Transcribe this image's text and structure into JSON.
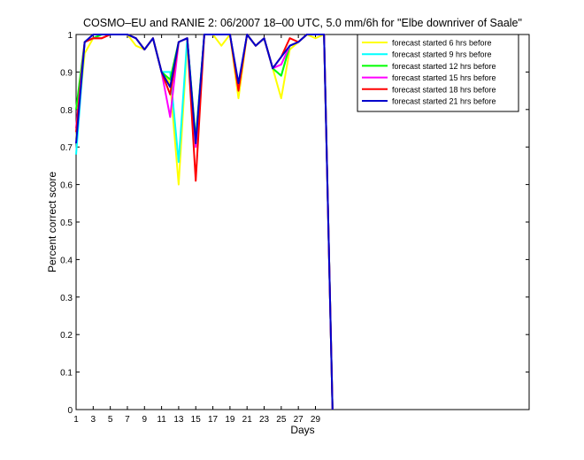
{
  "chart_data": {
    "type": "line",
    "title": "COSMO–EU and RANIE 2: 06/2007 18–00 UTC, 5.0 mm/6h for \"Elbe downriver of Saale\"",
    "xlabel": "Days",
    "ylabel": "Percent correct score",
    "xlim": [
      1,
      54
    ],
    "ylim": [
      0,
      1
    ],
    "x_ticks": [
      "1",
      "3",
      "5",
      "7",
      "9",
      "11",
      "13",
      "15",
      "17",
      "19",
      "21",
      "23",
      "25",
      "27",
      "29"
    ],
    "y_ticks": [
      "0",
      "0.1",
      "0.2",
      "0.3",
      "0.4",
      "0.5",
      "0.6",
      "0.7",
      "0.8",
      "0.9",
      "1"
    ],
    "grid": false,
    "legend_position": "top-right",
    "x": [
      1,
      2,
      3,
      4,
      5,
      6,
      7,
      8,
      9,
      10,
      11,
      12,
      13,
      14,
      15,
      16,
      17,
      18,
      19,
      20,
      21,
      22,
      23,
      24,
      25,
      26,
      27,
      28,
      29,
      30,
      31
    ],
    "series": [
      {
        "name": "forecast started 6 hrs before",
        "color": "#ffff00",
        "values": [
          0.72,
          0.95,
          0.99,
          0.99,
          1.0,
          1.0,
          1.0,
          0.97,
          0.96,
          0.99,
          0.9,
          0.87,
          0.6,
          0.98,
          0.7,
          1.0,
          1.0,
          0.97,
          1.0,
          0.83,
          1.0,
          0.97,
          0.99,
          0.91,
          0.83,
          0.96,
          0.98,
          1.0,
          0.99,
          1.0,
          0.0
        ]
      },
      {
        "name": "forecast started 9 hrs before",
        "color": "#00ffff",
        "values": [
          0.68,
          0.98,
          0.99,
          1.0,
          1.0,
          1.0,
          1.0,
          0.99,
          0.96,
          0.99,
          0.9,
          0.9,
          0.66,
          0.99,
          0.72,
          1.0,
          1.0,
          1.0,
          1.0,
          0.86,
          1.0,
          0.97,
          0.99,
          0.91,
          0.89,
          0.97,
          0.98,
          1.0,
          1.0,
          1.0,
          0.0
        ]
      },
      {
        "name": "forecast started 12 hrs before",
        "color": "#00ff00",
        "values": [
          0.8,
          0.98,
          0.99,
          1.0,
          1.0,
          1.0,
          1.0,
          0.99,
          0.96,
          0.99,
          0.9,
          0.88,
          0.98,
          0.99,
          0.72,
          1.0,
          1.0,
          1.0,
          1.0,
          0.86,
          1.0,
          0.97,
          0.99,
          0.91,
          0.89,
          0.97,
          0.98,
          1.0,
          1.0,
          1.0,
          0.0
        ]
      },
      {
        "name": "forecast started 15 hrs before",
        "color": "#ff00ff",
        "values": [
          0.75,
          0.98,
          0.99,
          0.99,
          1.0,
          1.0,
          1.0,
          0.99,
          0.96,
          0.99,
          0.9,
          0.78,
          0.98,
          0.99,
          0.7,
          1.0,
          1.0,
          1.0,
          1.0,
          0.86,
          1.0,
          0.97,
          0.99,
          0.91,
          0.92,
          0.97,
          0.98,
          1.0,
          1.0,
          1.0,
          0.0
        ]
      },
      {
        "name": "forecast started 18 hrs before",
        "color": "#ff0000",
        "values": [
          0.74,
          0.98,
          0.99,
          0.99,
          1.0,
          1.0,
          1.0,
          0.99,
          0.96,
          0.99,
          0.9,
          0.84,
          0.98,
          0.99,
          0.61,
          1.0,
          1.0,
          1.0,
          1.0,
          0.85,
          1.0,
          0.97,
          0.99,
          0.91,
          0.94,
          0.99,
          0.98,
          1.0,
          1.0,
          1.0,
          0.0
        ]
      },
      {
        "name": "forecast started 21 hrs before",
        "color": "#0000cc",
        "values": [
          0.71,
          0.98,
          1.0,
          1.0,
          1.0,
          1.0,
          1.0,
          0.99,
          0.96,
          0.99,
          0.9,
          0.86,
          0.98,
          0.99,
          0.71,
          1.0,
          1.0,
          1.0,
          1.0,
          0.87,
          1.0,
          0.97,
          0.99,
          0.91,
          0.94,
          0.97,
          0.98,
          1.0,
          1.0,
          1.0,
          0.0
        ]
      }
    ]
  }
}
